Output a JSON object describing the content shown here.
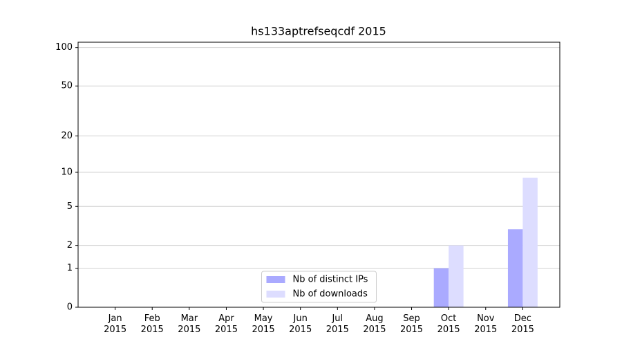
{
  "chart_data": {
    "type": "bar",
    "title": "hs133aptrefseqcdf 2015",
    "categories": [
      "Jan\n2015",
      "Feb\n2015",
      "Mar\n2015",
      "Apr\n2015",
      "May\n2015",
      "Jun\n2015",
      "Jul\n2015",
      "Aug\n2015",
      "Sep\n2015",
      "Oct\n2015",
      "Nov\n2015",
      "Dec\n2015"
    ],
    "series": [
      {
        "name": "Nb of distinct IPs",
        "color": "#aaaaff",
        "values": [
          0,
          0,
          0,
          0,
          0,
          0,
          0,
          0,
          0,
          1,
          0,
          3
        ]
      },
      {
        "name": "Nb of downloads",
        "color": "#ddddff",
        "values": [
          0,
          0,
          0,
          0,
          0,
          0,
          0,
          0,
          0,
          2,
          0,
          9
        ]
      }
    ],
    "yscale": "log1p",
    "ylim": [
      0,
      110
    ],
    "yticks": [
      0,
      1,
      2,
      5,
      10,
      20,
      50,
      100
    ],
    "grid": true,
    "legend": "lower center"
  }
}
